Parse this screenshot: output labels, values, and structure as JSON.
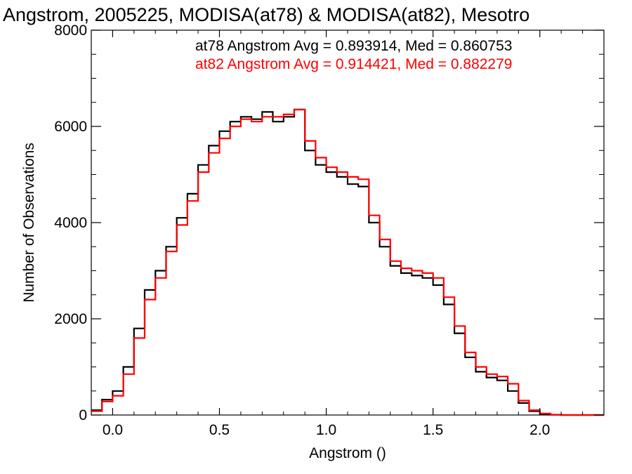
{
  "chart_data": {
    "type": "line",
    "title": "Angstrom, 2005225, MODISA(at78) & MODISA(at82), Mesotro",
    "xlabel": "Angstrom ()",
    "ylabel": "Number of Observations",
    "xlim": [
      -0.1,
      2.3
    ],
    "ylim": [
      0,
      8000
    ],
    "x_ticks": [
      0.0,
      0.5,
      1.0,
      1.5,
      2.0
    ],
    "x_tick_labels": [
      "0.0",
      "0.5",
      "1.0",
      "1.5",
      "2.0"
    ],
    "y_ticks": [
      0,
      2000,
      4000,
      6000,
      8000
    ],
    "y_tick_labels": [
      "0",
      "2000",
      "4000",
      "6000",
      "8000"
    ],
    "grid": false,
    "annotations": [
      {
        "text": "at78 Angstrom Avg = 0.893914, Med = 0.860753",
        "color": "#000000"
      },
      {
        "text": "at82 Angstrom Avg = 0.914421, Med = 0.882279",
        "color": "#ff0000"
      }
    ],
    "series": [
      {
        "color": "#000000",
        "x": [
          -0.1,
          -0.05,
          0.0,
          0.05,
          0.1,
          0.15,
          0.2,
          0.25,
          0.3,
          0.35,
          0.4,
          0.45,
          0.5,
          0.55,
          0.6,
          0.65,
          0.7,
          0.75,
          0.8,
          0.85,
          0.9,
          0.95,
          1.0,
          1.05,
          1.1,
          1.15,
          1.2,
          1.25,
          1.3,
          1.35,
          1.4,
          1.45,
          1.5,
          1.55,
          1.6,
          1.65,
          1.7,
          1.75,
          1.8,
          1.85,
          1.9,
          1.95,
          2.0,
          2.05,
          2.1,
          2.15,
          2.2,
          2.25
        ],
        "values": [
          100,
          320,
          500,
          1000,
          1800,
          2600,
          3000,
          3500,
          4100,
          4600,
          5200,
          5600,
          5900,
          6100,
          6200,
          6150,
          6300,
          6100,
          6200,
          6350,
          5500,
          5200,
          5050,
          4950,
          4800,
          4750,
          4000,
          3500,
          3100,
          2950,
          2900,
          2850,
          2700,
          2300,
          1700,
          1200,
          900,
          780,
          720,
          500,
          250,
          80,
          20,
          5,
          0,
          0,
          0,
          0
        ]
      },
      {
        "color": "#ff0000",
        "x": [
          -0.1,
          -0.05,
          0.0,
          0.05,
          0.1,
          0.15,
          0.2,
          0.25,
          0.3,
          0.35,
          0.4,
          0.45,
          0.5,
          0.55,
          0.6,
          0.65,
          0.7,
          0.75,
          0.8,
          0.85,
          0.9,
          0.95,
          1.0,
          1.05,
          1.1,
          1.15,
          1.2,
          1.25,
          1.3,
          1.35,
          1.4,
          1.45,
          1.5,
          1.55,
          1.6,
          1.65,
          1.7,
          1.75,
          1.8,
          1.85,
          1.9,
          1.95,
          2.0,
          2.05,
          2.1,
          2.15,
          2.2,
          2.25
        ],
        "values": [
          80,
          280,
          400,
          850,
          1600,
          2400,
          2850,
          3400,
          3950,
          4450,
          5050,
          5450,
          5750,
          6000,
          6150,
          6100,
          6200,
          6200,
          6250,
          6350,
          5700,
          5350,
          5150,
          5050,
          4950,
          4900,
          4150,
          3650,
          3200,
          3050,
          3000,
          2950,
          2850,
          2450,
          1850,
          1300,
          1000,
          850,
          800,
          650,
          300,
          100,
          30,
          8,
          0,
          0,
          0,
          0
        ]
      }
    ]
  }
}
